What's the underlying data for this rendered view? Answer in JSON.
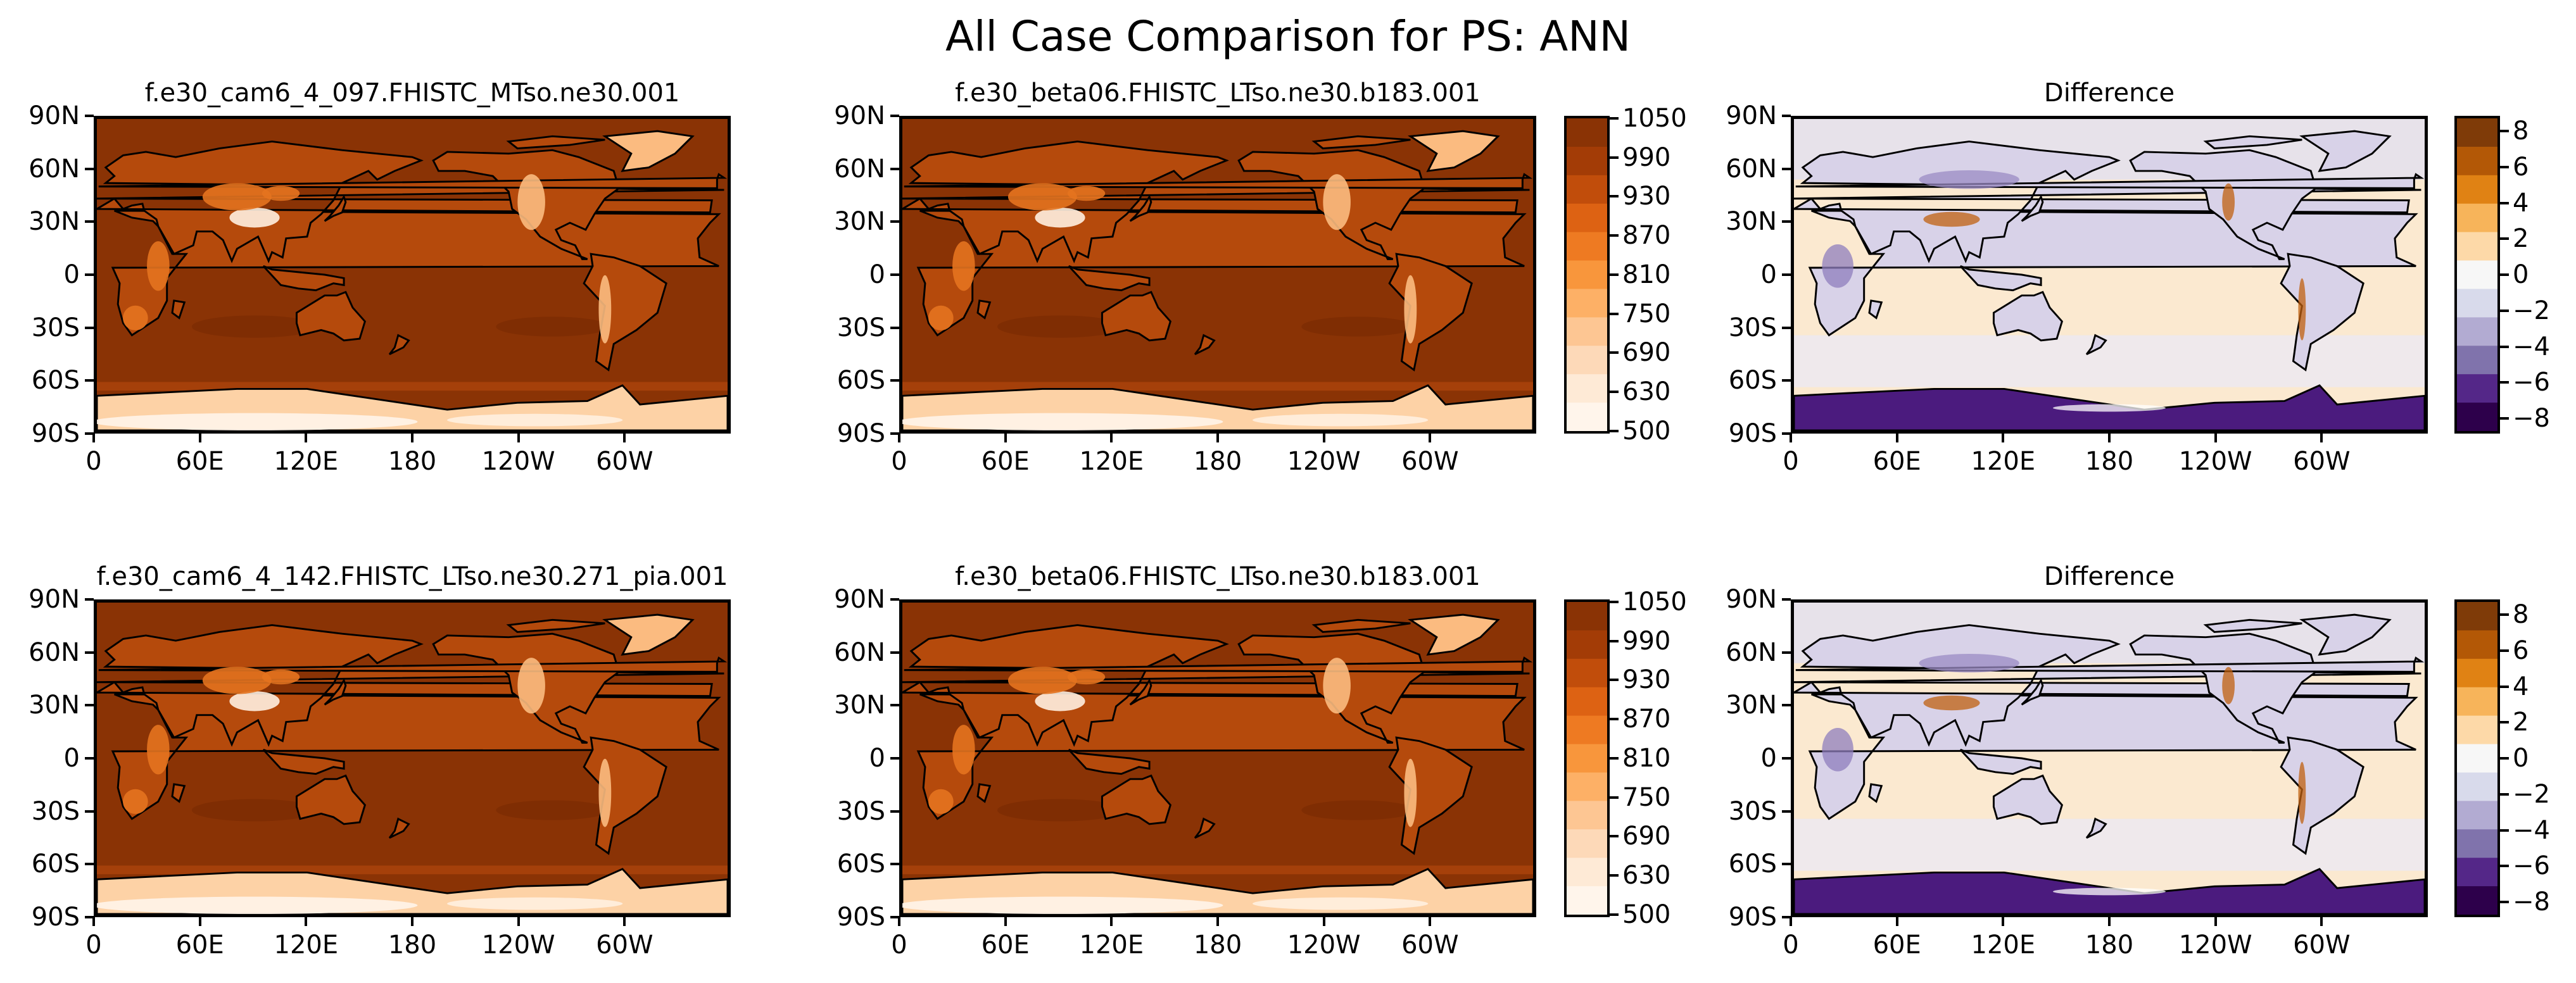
{
  "figure": {
    "title": "All Case Comparison for PS: ANN"
  },
  "chart_data": [
    {
      "type": "heatmap",
      "projection": "map",
      "title": "f.e30_cam6_4_097.FHISTC_MTso.ne30.001",
      "x_ticks": [
        "0",
        "60E",
        "120E",
        "180",
        "120W",
        "60W"
      ],
      "y_ticks": [
        "90N",
        "60N",
        "30N",
        "0",
        "30S",
        "60S",
        "90S"
      ],
      "colormap": "Oranges",
      "units_range": [
        500,
        1050
      ]
    },
    {
      "type": "heatmap",
      "projection": "map",
      "title": "f.e30_beta06.FHISTC_LTso.ne30.b183.001",
      "x_ticks": [
        "0",
        "60E",
        "120E",
        "180",
        "120W",
        "60W"
      ],
      "y_ticks": [
        "90N",
        "60N",
        "30N",
        "0",
        "30S",
        "60S",
        "90S"
      ],
      "colormap": "Oranges",
      "units_range": [
        500,
        1050
      ]
    },
    {
      "type": "heatmap",
      "projection": "map",
      "title": "Difference",
      "x_ticks": [
        "0",
        "60E",
        "120E",
        "180",
        "120W",
        "60W"
      ],
      "y_ticks": [
        "90N",
        "60N",
        "30N",
        "0",
        "30S",
        "60S",
        "90S"
      ],
      "colormap": "PuOr_r",
      "units_range": [
        -9,
        9
      ]
    },
    {
      "type": "heatmap",
      "projection": "map",
      "title": "f.e30_cam6_4_142.FHISTC_LTso.ne30.271_pia.001",
      "x_ticks": [
        "0",
        "60E",
        "120E",
        "180",
        "120W",
        "60W"
      ],
      "y_ticks": [
        "90N",
        "60N",
        "30N",
        "0",
        "30S",
        "60S",
        "90S"
      ],
      "colormap": "Oranges",
      "units_range": [
        500,
        1050
      ]
    },
    {
      "type": "heatmap",
      "projection": "map",
      "title": "f.e30_beta06.FHISTC_LTso.ne30.b183.001",
      "x_ticks": [
        "0",
        "60E",
        "120E",
        "180",
        "120W",
        "60W"
      ],
      "y_ticks": [
        "90N",
        "60N",
        "30N",
        "0",
        "30S",
        "60S",
        "90S"
      ],
      "colormap": "Oranges",
      "units_range": [
        500,
        1050
      ]
    },
    {
      "type": "heatmap",
      "projection": "map",
      "title": "Difference",
      "x_ticks": [
        "0",
        "60E",
        "120E",
        "180",
        "120W",
        "60W"
      ],
      "y_ticks": [
        "90N",
        "60N",
        "30N",
        "0",
        "30S",
        "60S",
        "90S"
      ],
      "colormap": "PuOr_r",
      "units_range": [
        -9,
        9
      ]
    }
  ],
  "colorbars": [
    {
      "name": "ps-colorbar-row1",
      "ticks": [
        "1050",
        "990",
        "930",
        "870",
        "810",
        "750",
        "690",
        "630",
        "500"
      ]
    },
    {
      "name": "diff-colorbar-row1",
      "ticks": [
        "8",
        "6",
        "4",
        "2",
        "0",
        "−2",
        "−4",
        "−6",
        "−8"
      ]
    },
    {
      "name": "ps-colorbar-row2",
      "ticks": [
        "1050",
        "990",
        "930",
        "870",
        "810",
        "750",
        "690",
        "630",
        "500"
      ]
    },
    {
      "name": "diff-colorbar-row2",
      "ticks": [
        "8",
        "6",
        "4",
        "2",
        "0",
        "−2",
        "−4",
        "−6",
        "−8"
      ]
    }
  ],
  "colors": {
    "ps_ocean": "#8a3305",
    "ps_land_high": "#b54a0c",
    "ps_land_mid": "#e4731f",
    "ps_land_low": "#fbbb80",
    "ps_plateau": "#fff0e0",
    "ps_antarctic": "#fdd2a6",
    "diff_ocean": "#fbe9d0",
    "diff_land": "#d8d2e8",
    "diff_antarctic": "#4b1b7e",
    "diff_pos": "#c06010",
    "coastline": "#000000"
  }
}
